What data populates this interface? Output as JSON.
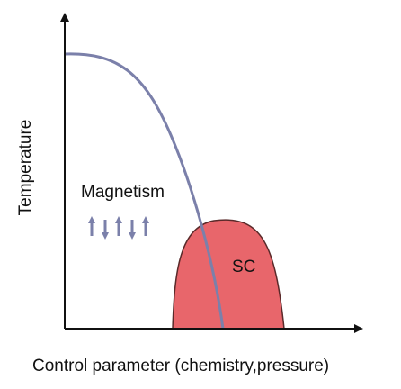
{
  "axes": {
    "y_label": "Temperature",
    "x_label": "Control parameter (chemistry,pressure)"
  },
  "regions": [
    {
      "label": "Magnetism"
    },
    {
      "label": "SC"
    }
  ]
}
